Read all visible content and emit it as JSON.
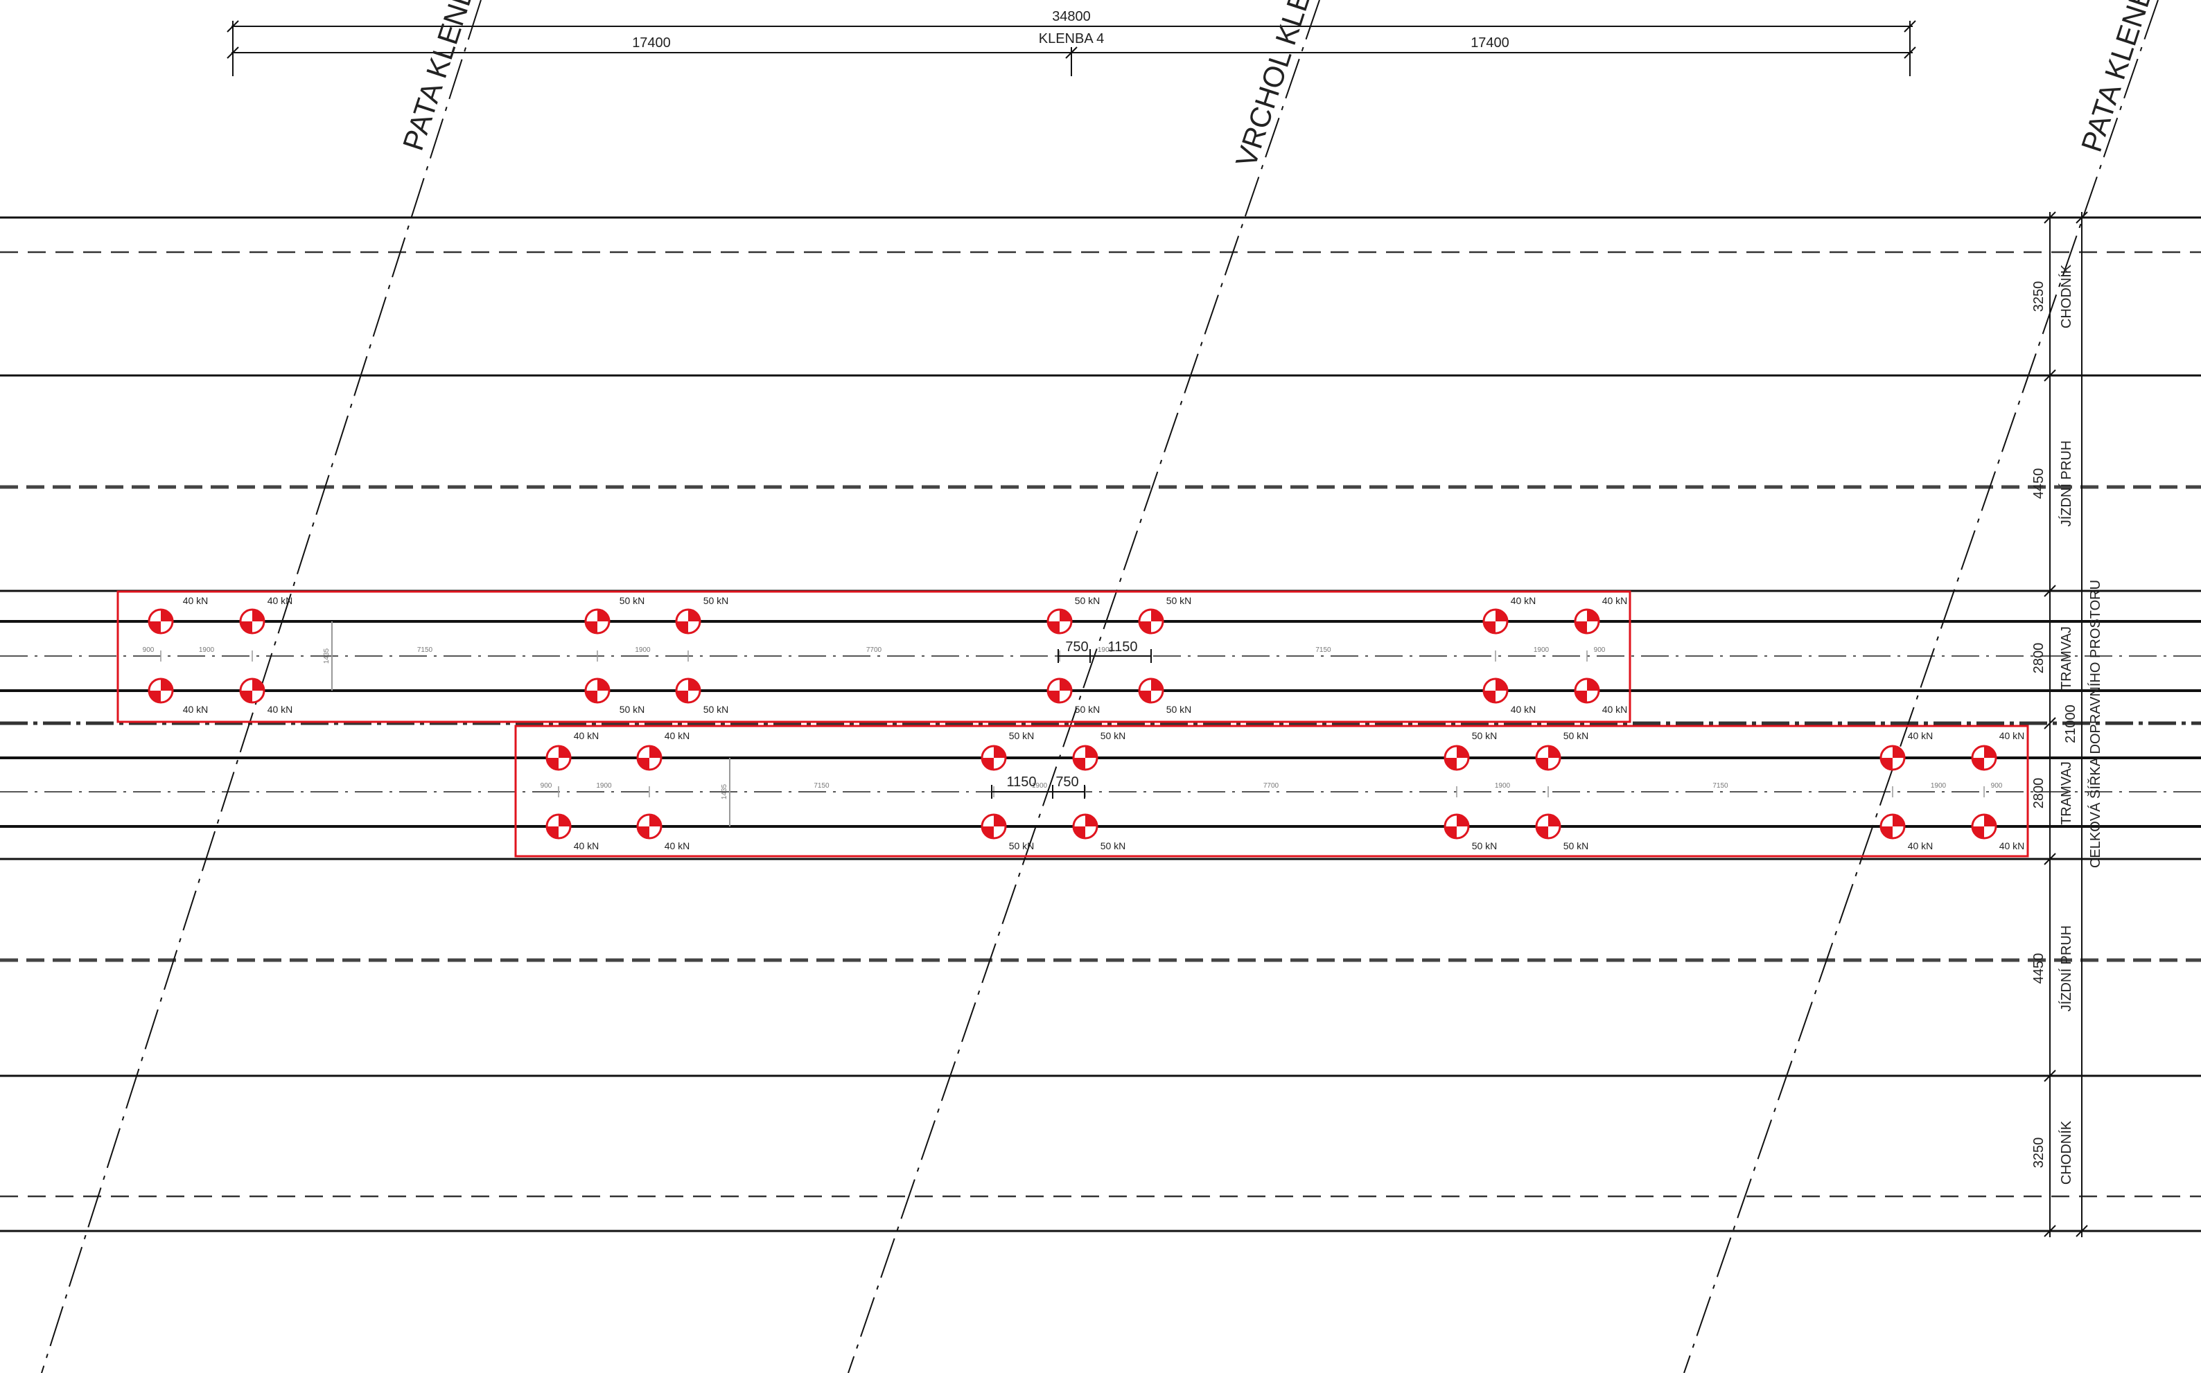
{
  "top_dimensions": {
    "total": "34800",
    "left": "17400",
    "right": "17400",
    "name": "KLENBA 4"
  },
  "axis_labels": {
    "left_springing": "PATA KLENBY",
    "crown": "VRCHOL KLENBY",
    "right_springing": "PATA KLENBY"
  },
  "cross_section": {
    "lanes": [
      {
        "dim": "3250",
        "label": "CHODNÍK"
      },
      {
        "dim": "4450",
        "label": "JÍZDNÍ PRUH"
      },
      {
        "dim": "2800",
        "label": "TRAMVAJ"
      },
      {
        "dim": "2800",
        "label": "TRAMVAJ"
      },
      {
        "dim": "4450",
        "label": "JÍZDNÍ PRUH"
      },
      {
        "dim": "3250",
        "label": "CHODNÍK"
      }
    ],
    "total_dim": "21000",
    "total_label": "CELKOVÁ ŠÍŘKA DOPRAVNÍHO PROSTORU"
  },
  "tram_upper": {
    "axles": [
      {
        "top": "40 kN",
        "bottom": "40 kN"
      },
      {
        "top": "40 kN",
        "bottom": "40 kN"
      },
      {
        "top": "50 kN",
        "bottom": "50 kN"
      },
      {
        "top": "50 kN",
        "bottom": "50 kN"
      },
      {
        "top": "50 kN",
        "bottom": "50 kN"
      },
      {
        "top": "50 kN",
        "bottom": "50 kN"
      },
      {
        "top": "40 kN",
        "bottom": "40 kN"
      },
      {
        "top": "40 kN",
        "bottom": "40 kN"
      }
    ],
    "spacing": [
      "900",
      "1900",
      "7150",
      "1900",
      "7700",
      "1900",
      "7150",
      "1900",
      "900"
    ],
    "gauge": "1435",
    "callout_left": "750",
    "callout_right": "1150"
  },
  "tram_lower": {
    "axles": [
      {
        "top": "40 kN",
        "bottom": "40 kN"
      },
      {
        "top": "40 kN",
        "bottom": "40 kN"
      },
      {
        "top": "50 kN",
        "bottom": "50 kN"
      },
      {
        "top": "50 kN",
        "bottom": "50 kN"
      },
      {
        "top": "50 kN",
        "bottom": "50 kN"
      },
      {
        "top": "50 kN",
        "bottom": "50 kN"
      },
      {
        "top": "40 kN",
        "bottom": "40 kN"
      },
      {
        "top": "40 kN",
        "bottom": "40 kN"
      }
    ],
    "spacing": [
      "900",
      "1900",
      "7150",
      "1900",
      "7700",
      "1900",
      "7150",
      "1900",
      "900"
    ],
    "gauge": "1435",
    "callout_left": "1150",
    "callout_right": "750"
  },
  "colors": {
    "lines": "#111111",
    "dashed": "#444444",
    "tram_outline": "#e0141e",
    "load_symbol": "#e0141e",
    "minor_dim": "#888888"
  }
}
